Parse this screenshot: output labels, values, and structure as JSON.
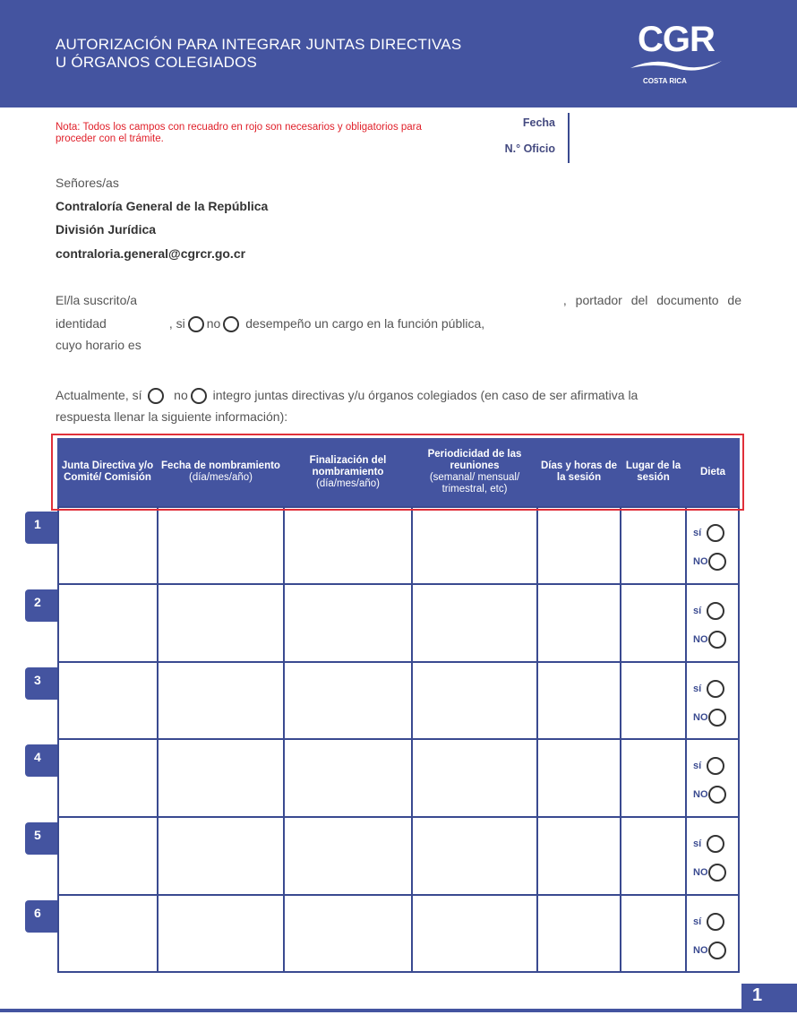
{
  "header": {
    "title_line1": "AUTORIZACIÓN PARA INTEGRAR JUNTAS DIRECTIVAS",
    "title_line2": "U ÓRGANOS COLEGIADOS",
    "logo_text": "CGR",
    "logo_sub": "COSTA RICA",
    "color": "#4454a0"
  },
  "nota": "Nota: Todos los campos con recuadro en rojo son necesarios y obligatorios para proceder con el trámite.",
  "fecha_label": "Fecha",
  "oficio_label": "N.° Oficio",
  "address": {
    "greeting": "Señores/as",
    "org": "Contraloría General de la República",
    "division": "División Jurídica",
    "email": "contraloria.general@cgrcr.go.cr"
  },
  "para1": {
    "suscrito": "El/la suscrito/a",
    "portador": ", portador del documento de",
    "identidad": "identidad",
    "si": ", si",
    "no": "no",
    "cargo": "desempeño un cargo en la función pública,",
    "horario": "cuyo horario es"
  },
  "para2": {
    "actualmente": "Actualmente, sí",
    "no": "no",
    "text1": "integro juntas directivas y/u órganos colegiados (en caso de ser afirmativa la",
    "text2": "respuesta llenar la siguiente información):"
  },
  "table": {
    "headers": [
      {
        "bold": "Junta Directiva y/o Comité/ Comisión",
        "sub": ""
      },
      {
        "bold": "Fecha de nombramiento",
        "sub": "(día/mes/año)"
      },
      {
        "bold": "Finalización del nombramiento",
        "sub": "(día/mes/año)"
      },
      {
        "bold": "Periodicidad de las reuniones",
        "sub": "(semanal/ mensual/ trimestral, etc)"
      },
      {
        "bold": "Días y horas de la sesión",
        "sub": ""
      },
      {
        "bold": "Lugar de la sesión",
        "sub": ""
      },
      {
        "bold": "Dieta",
        "sub": ""
      }
    ],
    "rows": [
      "1",
      "2",
      "3",
      "4",
      "5",
      "6"
    ],
    "si": "sí",
    "no": "NO"
  },
  "page_number": "1"
}
